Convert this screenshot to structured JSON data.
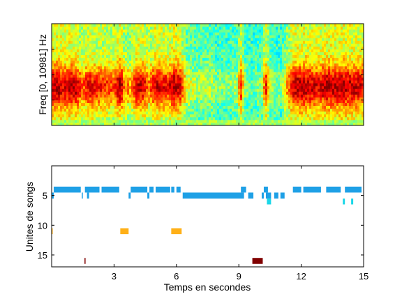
{
  "chart_data": [
    {
      "type": "heatmap",
      "description_kind": "spectrogram",
      "ylabel": "Freq [0, 10981] Hz",
      "xlim": [
        0,
        15
      ],
      "ylim": [
        0,
        10981
      ],
      "colormap": "jet",
      "energy_profile": {
        "x": [
          0.0,
          0.3,
          0.6,
          1.0,
          1.2,
          1.5,
          1.8,
          2.2,
          2.6,
          3.0,
          3.3,
          3.5,
          3.8,
          4.1,
          4.4,
          4.7,
          5.0,
          5.3,
          5.6,
          5.9,
          6.2,
          6.5,
          7.0,
          7.5,
          8.0,
          8.5,
          8.9,
          9.1,
          9.3,
          9.5,
          9.7,
          9.9,
          10.1,
          10.3,
          10.5,
          10.8,
          11.0,
          11.3,
          11.6,
          12.0,
          12.4,
          12.8,
          13.2,
          13.6,
          14.0,
          14.4,
          14.8,
          15.0
        ],
        "intensity": [
          0.85,
          0.9,
          0.8,
          0.9,
          0.85,
          0.6,
          0.8,
          0.75,
          0.7,
          0.65,
          0.95,
          0.6,
          0.5,
          0.85,
          0.8,
          0.6,
          0.85,
          0.8,
          0.75,
          0.9,
          0.8,
          0.35,
          0.25,
          0.3,
          0.2,
          0.2,
          0.25,
          0.75,
          0.2,
          0.15,
          0.15,
          0.2,
          0.2,
          0.8,
          0.3,
          0.2,
          0.15,
          0.5,
          0.85,
          0.9,
          0.85,
          0.8,
          0.9,
          0.85,
          0.9,
          0.85,
          0.85,
          0.8
        ]
      }
    },
    {
      "type": "heatmap",
      "description_kind": "unit-activation raster",
      "xlabel": "Temps en secondes",
      "ylabel": "Unites de songs",
      "xlim": [
        0,
        15
      ],
      "ylim": [
        17,
        0
      ],
      "xticks": [
        3,
        6,
        9,
        12,
        15
      ],
      "yticks": [
        5,
        10,
        15
      ],
      "units": [
        {
          "unit": 4,
          "color": "#1ea0e6",
          "segments": [
            [
              0.1,
              1.4
            ],
            [
              1.6,
              2.3
            ],
            [
              2.4,
              3.25
            ],
            [
              3.8,
              4.6
            ],
            [
              4.7,
              4.9
            ],
            [
              5.0,
              5.7
            ],
            [
              5.75,
              5.9
            ],
            [
              6.0,
              6.2
            ],
            [
              9.1,
              9.35
            ],
            [
              10.2,
              10.4
            ],
            [
              11.6,
              12.0
            ],
            [
              12.1,
              12.95
            ],
            [
              13.2,
              13.9
            ],
            [
              14.1,
              14.9
            ]
          ]
        },
        {
          "unit": 5,
          "color": "#1ea0e6",
          "segments": [
            [
              0.0,
              0.1
            ],
            [
              1.45,
              1.5
            ],
            [
              1.7,
              1.8
            ],
            [
              3.7,
              3.8
            ],
            [
              4.6,
              4.7
            ],
            [
              6.3,
              9.25
            ],
            [
              9.45,
              9.7
            ],
            [
              10.1,
              10.2
            ],
            [
              10.3,
              10.55
            ],
            [
              10.7,
              10.9
            ],
            [
              11.0,
              11.2
            ]
          ]
        },
        {
          "unit": 6,
          "color": "#1ad7e8",
          "segments": [
            [
              10.35,
              10.55
            ],
            [
              14.0,
              14.1
            ],
            [
              14.4,
              14.5
            ]
          ]
        },
        {
          "unit": 11,
          "color": "#ffb018",
          "segments": [
            [
              0.0,
              0.05
            ],
            [
              3.3,
              3.7
            ],
            [
              5.75,
              6.25
            ]
          ]
        },
        {
          "unit": 16,
          "color": "#800000",
          "segments": [
            [
              1.58,
              1.63
            ],
            [
              9.65,
              10.15
            ]
          ]
        }
      ]
    }
  ]
}
